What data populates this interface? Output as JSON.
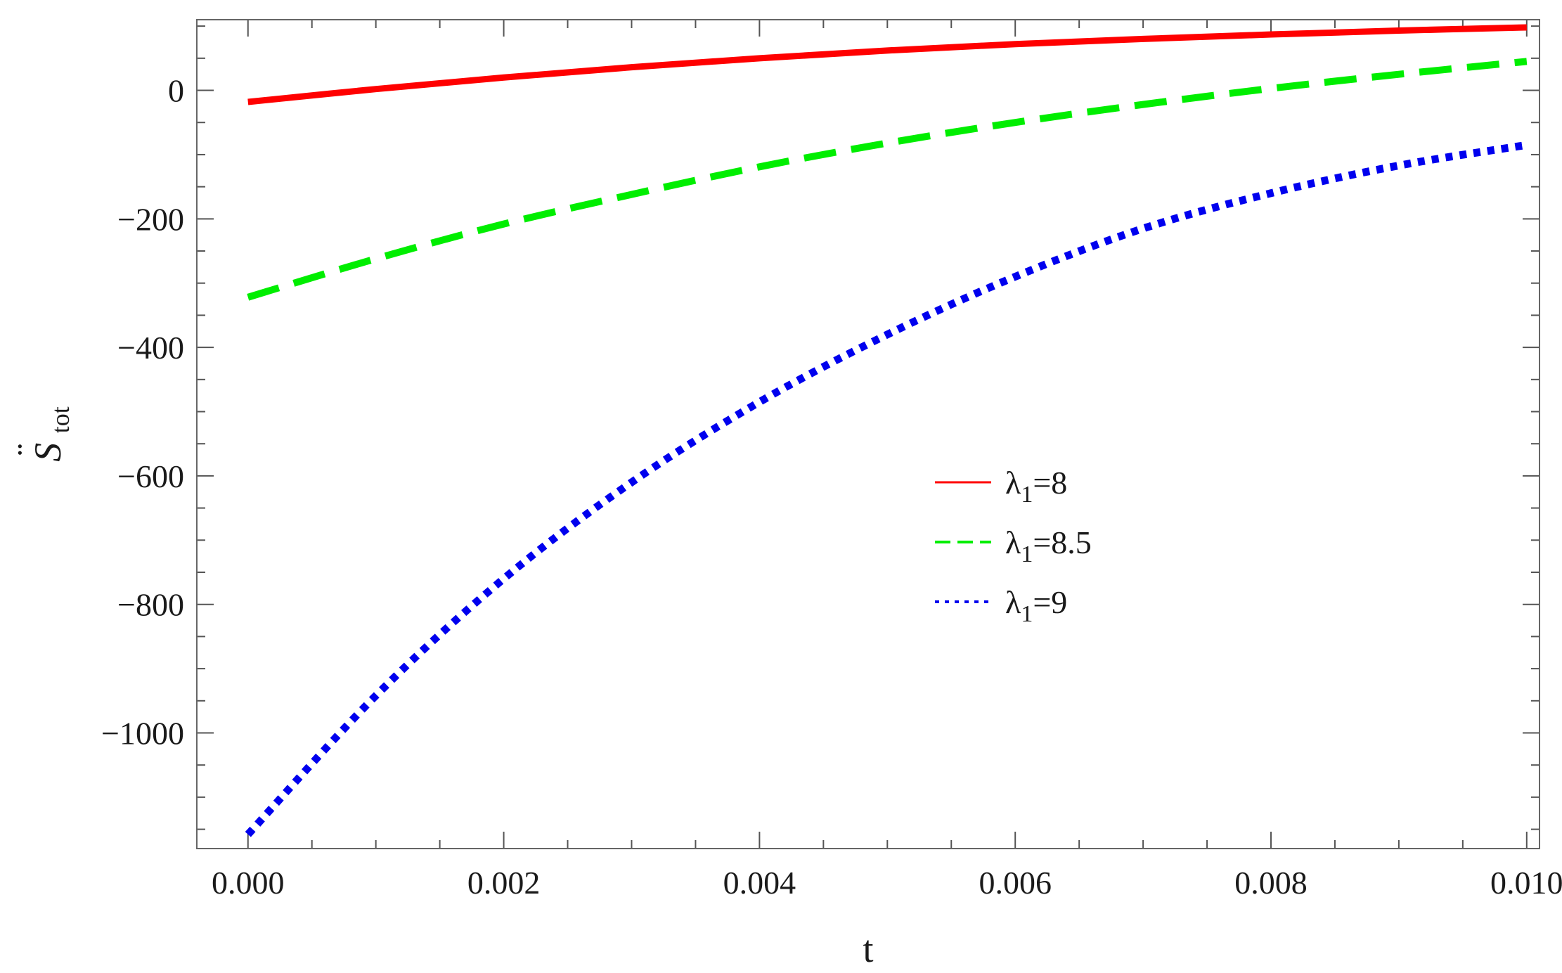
{
  "chart_data": {
    "type": "line",
    "title": "",
    "xlabel": "t",
    "ylabel": {
      "main": "S",
      "accent": "¨",
      "subscript": "tot"
    },
    "xlim": [
      -0.0004,
      0.0101
    ],
    "ylim": [
      -1180,
      110
    ],
    "x_ticks": [
      0.0,
      0.002,
      0.004,
      0.006,
      0.008,
      0.01
    ],
    "x_tick_labels": [
      "0.000",
      "0.002",
      "0.004",
      "0.006",
      "0.008",
      "0.010"
    ],
    "y_ticks": [
      0,
      -200,
      -400,
      -600,
      -800,
      -1000
    ],
    "y_tick_labels": [
      "0",
      "−200",
      "−400",
      "−600",
      "−800",
      "−1000"
    ],
    "grid": false,
    "legend_position": "center-right",
    "x": [
      0.0,
      0.001,
      0.002,
      0.003,
      0.004,
      0.005,
      0.006,
      0.007,
      0.008,
      0.009,
      0.01
    ],
    "series": [
      {
        "name": "λ₁=8",
        "label_main": "λ",
        "label_sub": "1",
        "label_value": "=8",
        "color": "#ff0000",
        "style": "solid",
        "values": [
          -18,
          2,
          20,
          36,
          50,
          62,
          72,
          80,
          87,
          93,
          98
        ]
      },
      {
        "name": "λ₁=8.5",
        "label_main": "λ",
        "label_sub": "1",
        "label_value": "=8.5",
        "color": "#00ee00",
        "style": "dashed",
        "values": [
          -322,
          -262,
          -208,
          -162,
          -119,
          -82,
          -50,
          -22,
          3,
          25,
          45
        ]
      },
      {
        "name": "λ₁=9",
        "label_main": "λ",
        "label_sub": "1",
        "label_value": "=9",
        "color": "#0000ee",
        "style": "dotted",
        "values": [
          -1158,
          -942,
          -760,
          -610,
          -485,
          -380,
          -290,
          -215,
          -160,
          -117,
          -85
        ]
      }
    ]
  }
}
